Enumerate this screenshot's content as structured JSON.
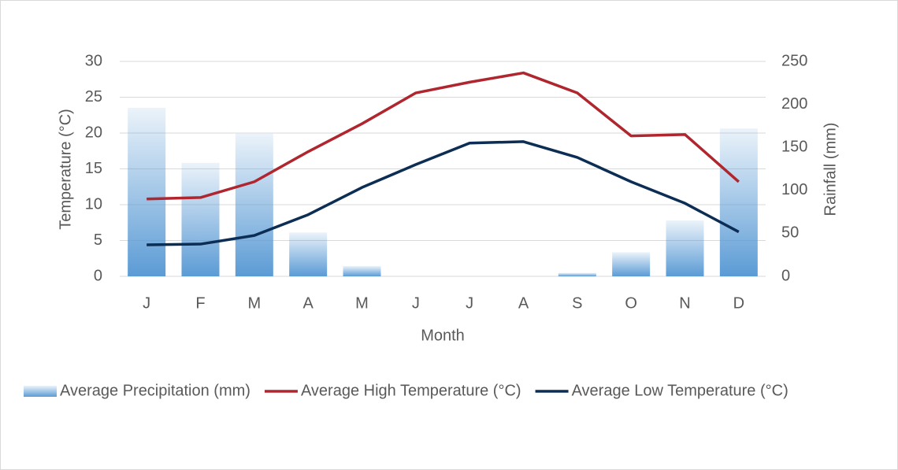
{
  "chart_data": {
    "type": "combo",
    "x_label": "Month",
    "y_label": "Temperature (°C)",
    "y2_label": "Rainfall (mm)",
    "categories": [
      "J",
      "F",
      "M",
      "A",
      "M",
      "J",
      "J",
      "A",
      "S",
      "O",
      "N",
      "D"
    ],
    "ylim": [
      0,
      30
    ],
    "yticks": [
      0,
      5,
      10,
      15,
      20,
      25,
      30
    ],
    "y2lim": [
      0,
      250
    ],
    "y2ticks": [
      0,
      50,
      100,
      150,
      200,
      250
    ],
    "grid": true,
    "legend": "bottom",
    "series": [
      {
        "name": "Average Precipitation (mm)",
        "type": "bar",
        "axis": "y2",
        "color": "#5b9bd5",
        "values": [
          196,
          132,
          166,
          51,
          12,
          0,
          0,
          0,
          4,
          28,
          65,
          172
        ]
      },
      {
        "name": "Average High Temperature (°C)",
        "type": "line",
        "color": "#b0262f",
        "values": [
          10.8,
          11,
          13.2,
          17.4,
          21.3,
          25.6,
          27.1,
          28.4,
          25.6,
          19.6,
          19.8,
          13.2
        ]
      },
      {
        "name": "Average Low Temperature (°C)",
        "type": "line",
        "color": "#0c2d54",
        "values": [
          4.4,
          4.5,
          5.7,
          8.6,
          12.4,
          15.6,
          18.6,
          18.8,
          16.6,
          13.2,
          10.2,
          6.2
        ]
      }
    ]
  }
}
